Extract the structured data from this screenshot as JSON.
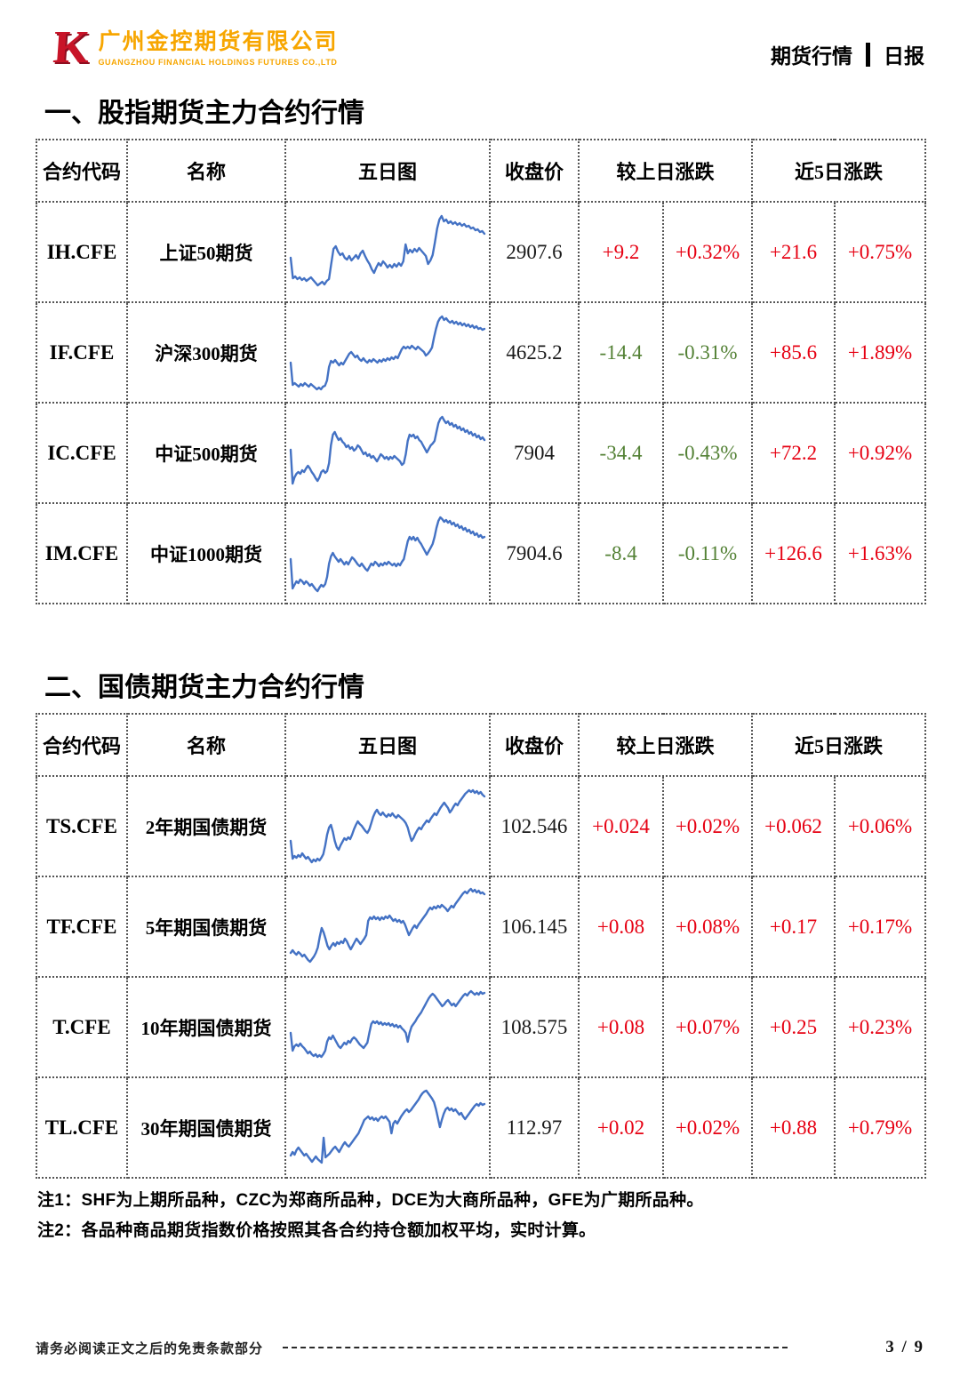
{
  "header": {
    "logo": {
      "k_icon": "K",
      "company_cn": "广州金控期货有限公司",
      "company_en": "GUANGZHOU FINANCIAL HOLDINGS FUTURES CO.,LTD"
    },
    "report_label_left": "期货行情",
    "report_label_right": "日报"
  },
  "colors": {
    "accent_orange": "#f7a600",
    "logo_red": "#c81428",
    "up_red": "#e60012",
    "down_green": "#538135",
    "spark_blue": "#4472c4"
  },
  "columns": [
    "合约代码",
    "名称",
    "五日图",
    "收盘价",
    "较上日涨跌",
    "近5日涨跌"
  ],
  "column_spans": [
    1,
    1,
    1,
    1,
    2,
    2
  ],
  "sections": [
    {
      "title": "一、股指期货主力合约行情",
      "rows": [
        {
          "code": "IH.CFE",
          "name": "上证50期货",
          "close": "2907.6",
          "chg": "+9.2",
          "chg_pct": "+0.32%",
          "chg_dir": "up",
          "chg5": "+21.6",
          "chg5_pct": "+0.75%",
          "chg5_dir": "up",
          "spark": [
            55,
            78,
            76,
            79,
            77,
            80,
            78,
            81,
            79,
            77,
            80,
            83,
            86,
            84,
            82,
            85,
            81,
            79,
            62,
            45,
            42,
            48,
            52,
            50,
            55,
            57,
            53,
            58,
            55,
            52,
            56,
            50,
            47,
            53,
            58,
            62,
            68,
            72,
            66,
            61,
            64,
            59,
            62,
            66,
            63,
            66,
            62,
            65,
            61,
            64,
            59,
            40,
            50,
            46,
            49,
            45,
            48,
            44,
            47,
            50,
            53,
            62,
            58,
            52,
            38,
            22,
            12,
            8,
            14,
            12,
            16,
            14,
            17,
            15,
            18,
            16,
            19,
            17,
            20,
            19,
            22,
            21,
            24,
            23,
            26,
            25,
            28
          ]
        },
        {
          "code": "IF.CFE",
          "name": "沪深300期货",
          "close": "4625.2",
          "chg": "-14.4",
          "chg_pct": "-0.31%",
          "chg_dir": "down",
          "chg5": "+85.6",
          "chg5_pct": "+1.89%",
          "chg5_dir": "up",
          "spark": [
            60,
            85,
            83,
            85,
            87,
            84,
            86,
            83,
            85,
            87,
            84,
            86,
            88,
            90,
            88,
            90,
            87,
            86,
            80,
            65,
            58,
            60,
            57,
            60,
            63,
            60,
            62,
            58,
            54,
            50,
            48,
            51,
            54,
            52,
            56,
            58,
            55,
            58,
            60,
            57,
            59,
            56,
            58,
            60,
            57,
            59,
            56,
            58,
            55,
            57,
            54,
            56,
            53,
            55,
            50,
            45,
            42,
            44,
            42,
            44,
            41,
            43,
            45,
            42,
            44,
            46,
            48,
            52,
            50,
            47,
            43,
            32,
            22,
            14,
            10,
            8,
            12,
            10,
            13,
            15,
            13,
            16,
            14,
            17,
            15,
            18,
            16,
            19,
            17,
            20,
            18,
            21,
            19,
            22,
            21,
            23,
            22
          ]
        },
        {
          "code": "IC.CFE",
          "name": "中证500期货",
          "close": "7904",
          "chg": "-34.4",
          "chg_pct": "-0.43%",
          "chg_dir": "down",
          "chg5": "+72.2",
          "chg5_pct": "+0.92%",
          "chg5_dir": "up",
          "spark": [
            45,
            83,
            76,
            72,
            70,
            72,
            68,
            70,
            66,
            63,
            66,
            70,
            73,
            77,
            80,
            76,
            70,
            68,
            71,
            69,
            60,
            40,
            28,
            25,
            30,
            34,
            32,
            36,
            38,
            42,
            40,
            44,
            42,
            46,
            44,
            40,
            42,
            46,
            50,
            48,
            52,
            50,
            54,
            52,
            55,
            58,
            54,
            50,
            52,
            55,
            53,
            56,
            53,
            55,
            52,
            54,
            56,
            58,
            62,
            60,
            50,
            35,
            28,
            30,
            28,
            32,
            30,
            34,
            36,
            40,
            44,
            48,
            44,
            40,
            38,
            35,
            25,
            15,
            10,
            8,
            12,
            15,
            13,
            17,
            15,
            19,
            17,
            21,
            19,
            23,
            21,
            25,
            23,
            27,
            25,
            29,
            27,
            31,
            29,
            33,
            31,
            34
          ]
        },
        {
          "code": "IM.CFE",
          "name": "中证1000期货",
          "close": "7904.6",
          "chg": "-8.4",
          "chg_pct": "-0.11%",
          "chg_dir": "down",
          "chg5": "+126.6",
          "chg5_pct": "+1.63%",
          "chg5_dir": "up",
          "spark": [
            55,
            88,
            84,
            80,
            82,
            78,
            80,
            83,
            80,
            82,
            85,
            83,
            86,
            89,
            91,
            87,
            84,
            86,
            83,
            75,
            60,
            52,
            48,
            52,
            55,
            58,
            55,
            58,
            61,
            58,
            61,
            57,
            53,
            55,
            58,
            61,
            63,
            60,
            63,
            66,
            68,
            64,
            60,
            62,
            58,
            60,
            63,
            60,
            62,
            59,
            61,
            58,
            60,
            62,
            60,
            63,
            60,
            62,
            58,
            55,
            45,
            35,
            30,
            33,
            30,
            34,
            31,
            35,
            38,
            42,
            46,
            50,
            46,
            42,
            38,
            30,
            20,
            12,
            8,
            10,
            13,
            11,
            14,
            12,
            16,
            14,
            18,
            16,
            20,
            18,
            22,
            20,
            24,
            22,
            26,
            24,
            28,
            26,
            30,
            28,
            31,
            30
          ]
        }
      ]
    },
    {
      "title": "二、国债期货主力合约行情",
      "rows": [
        {
          "code": "TS.CFE",
          "name": "2年期国债期货",
          "close": "102.546",
          "chg": "+0.024",
          "chg_pct": "+0.02%",
          "chg_dir": "up",
          "chg5": "+0.062",
          "chg5_pct": "+0.06%",
          "chg5_dir": "up",
          "spark": [
            65,
            85,
            82,
            84,
            81,
            83,
            79,
            82,
            85,
            83,
            86,
            89,
            86,
            88,
            85,
            87,
            84,
            80,
            70,
            58,
            50,
            47,
            55,
            65,
            72,
            75,
            70,
            66,
            62,
            64,
            61,
            63,
            58,
            52,
            47,
            43,
            46,
            48,
            51,
            54,
            56,
            52,
            45,
            38,
            33,
            30,
            34,
            36,
            33,
            36,
            38,
            35,
            37,
            34,
            37,
            39,
            36,
            38,
            40,
            42,
            45,
            50,
            58,
            65,
            62,
            57,
            53,
            50,
            52,
            48,
            45,
            42,
            44,
            40,
            37,
            34,
            36,
            32,
            28,
            25,
            22,
            25,
            28,
            33,
            30,
            26,
            23,
            25,
            21,
            18,
            15,
            12,
            10,
            8,
            10,
            8,
            11,
            9,
            12,
            10,
            13,
            15
          ]
        },
        {
          "code": "TF.CFE",
          "name": "5年期国债期货",
          "close": "106.145",
          "chg": "+0.08",
          "chg_pct": "+0.08%",
          "chg_dir": "up",
          "chg5": "+0.17",
          "chg5_pct": "+0.17%",
          "chg5_dir": "up",
          "spark": [
            78,
            75,
            78,
            80,
            77,
            79,
            82,
            80,
            83,
            86,
            88,
            85,
            82,
            78,
            72,
            60,
            50,
            55,
            62,
            70,
            74,
            70,
            67,
            70,
            66,
            68,
            65,
            67,
            62,
            65,
            70,
            74,
            70,
            66,
            62,
            65,
            68,
            65,
            62,
            58,
            42,
            38,
            40,
            37,
            40,
            38,
            41,
            38,
            40,
            37,
            39,
            36,
            39,
            42,
            40,
            43,
            41,
            44,
            42,
            46,
            52,
            58,
            54,
            50,
            47,
            50,
            46,
            43,
            40,
            37,
            34,
            30,
            27,
            29,
            26,
            28,
            25,
            27,
            24,
            26,
            28,
            31,
            28,
            25,
            27,
            23,
            20,
            17,
            14,
            11,
            9,
            11,
            8,
            6,
            9,
            7,
            10,
            8,
            11,
            10,
            12
          ]
        },
        {
          "code": "T.CFE",
          "name": "10年期国债期货",
          "close": "108.575",
          "chg": "+0.08",
          "chg_pct": "+0.07%",
          "chg_dir": "up",
          "chg5": "+0.25",
          "chg5_pct": "+0.23%",
          "chg5_dir": "up",
          "spark": [
            55,
            75,
            70,
            68,
            70,
            67,
            70,
            72,
            75,
            78,
            76,
            79,
            81,
            79,
            82,
            80,
            82,
            79,
            75,
            65,
            60,
            62,
            58,
            62,
            66,
            70,
            72,
            69,
            66,
            68,
            64,
            66,
            62,
            60,
            62,
            65,
            68,
            70,
            72,
            69,
            66,
            55,
            45,
            42,
            44,
            42,
            45,
            43,
            46,
            44,
            46,
            44,
            47,
            45,
            48,
            46,
            49,
            47,
            50,
            52,
            55,
            65,
            55,
            48,
            45,
            42,
            38,
            35,
            32,
            28,
            24,
            20,
            16,
            13,
            11,
            13,
            16,
            19,
            22,
            25,
            23,
            20,
            18,
            21,
            24,
            22,
            25,
            22,
            19,
            16,
            13,
            11,
            13,
            10,
            8,
            10,
            12,
            10,
            12,
            9,
            11,
            10
          ]
        },
        {
          "code": "TL.CFE",
          "name": "30年期国债期货",
          "close": "112.97",
          "chg": "+0.02",
          "chg_pct": "+0.02%",
          "chg_dir": "up",
          "chg5": "+0.88",
          "chg5_pct": "+0.79%",
          "chg5_dir": "up",
          "spark": [
            80,
            76,
            79,
            74,
            71,
            74,
            77,
            80,
            78,
            81,
            84,
            87,
            84,
            81,
            84,
            86,
            88,
            60,
            82,
            80,
            78,
            75,
            72,
            70,
            73,
            76,
            72,
            68,
            65,
            68,
            70,
            67,
            64,
            61,
            58,
            55,
            50,
            45,
            40,
            38,
            36,
            39,
            37,
            40,
            38,
            41,
            38,
            36,
            38,
            36,
            39,
            42,
            55,
            44,
            41,
            44,
            40,
            36,
            33,
            30,
            28,
            31,
            29,
            26,
            23,
            20,
            17,
            13,
            10,
            8,
            7,
            10,
            13,
            16,
            20,
            28,
            38,
            48,
            40,
            33,
            28,
            26,
            29,
            27,
            30,
            28,
            31,
            34,
            32,
            36,
            39,
            36,
            33,
            30,
            27,
            24,
            22,
            24,
            21,
            23,
            22
          ]
        }
      ]
    }
  ],
  "notes": [
    "注1：SHF为上期所品种，CZC为郑商所品种，DCE为大商所品种，GFE为广期所品种。",
    "注2：各品种商品期货指数价格按照其各合约持仓额加权平均，实时计算。"
  ],
  "footer": {
    "disclaimer": "请务必阅读正文之后的免责条款部分",
    "page": "3 / 9"
  }
}
